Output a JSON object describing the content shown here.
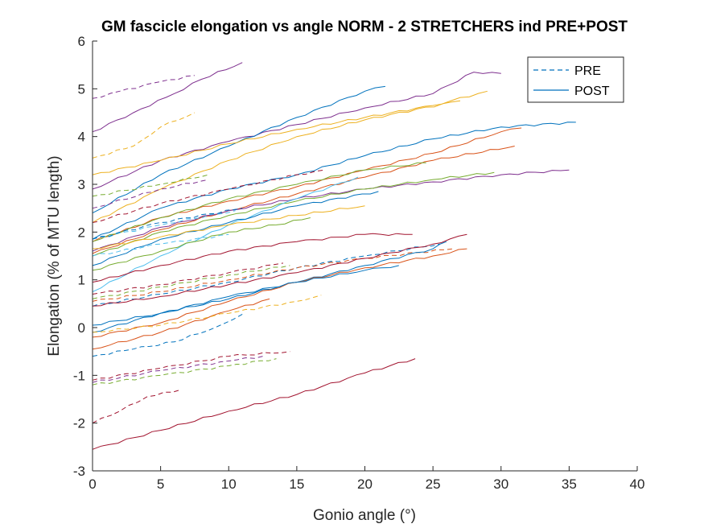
{
  "chart_data": {
    "type": "line",
    "title": "GM fascicle elongation vs angle NORM - 2 STRETCHERS ind PRE+POST",
    "xlabel": "Gonio angle (°)",
    "ylabel": "Elongation (% of MTU length)",
    "xlim": [
      0,
      40
    ],
    "ylim": [
      -3,
      6
    ],
    "xticks": [
      "0",
      "5",
      "10",
      "15",
      "20",
      "25",
      "30",
      "35",
      "40"
    ],
    "yticks": [
      "-3",
      "-2",
      "-1",
      "0",
      "1",
      "2",
      "3",
      "4",
      "5",
      "6"
    ],
    "grid": false,
    "legend": {
      "position": "top-right",
      "entries": [
        {
          "label": "PRE",
          "dash": "dashed",
          "color": "#0072bd"
        },
        {
          "label": "POST",
          "dash": "solid",
          "color": "#0072bd"
        }
      ]
    },
    "series": [
      {
        "condition": "POST",
        "color": "#7e2f8e",
        "x": [
          0,
          3,
          6,
          8,
          11
        ],
        "y": [
          4.1,
          4.5,
          4.9,
          5.2,
          5.55
        ]
      },
      {
        "condition": "PRE",
        "color": "#7e2f8e",
        "x": [
          0,
          2,
          5,
          7.5
        ],
        "y": [
          4.8,
          4.95,
          5.15,
          5.28
        ]
      },
      {
        "condition": "POST",
        "color": "#7e2f8e",
        "x": [
          0,
          5,
          10,
          15,
          20,
          25,
          28,
          30
        ],
        "y": [
          2.9,
          3.5,
          3.9,
          4.25,
          4.6,
          4.9,
          5.35,
          5.32
        ]
      },
      {
        "condition": "POST",
        "color": "#0072bd",
        "x": [
          0,
          5,
          10,
          15,
          20,
          21.5
        ],
        "y": [
          2.4,
          3.2,
          3.8,
          4.4,
          4.95,
          5.05
        ]
      },
      {
        "condition": "PRE",
        "color": "#edb120",
        "x": [
          0,
          3,
          5,
          7.5
        ],
        "y": [
          3.55,
          3.8,
          4.2,
          4.5
        ]
      },
      {
        "condition": "POST",
        "color": "#edb120",
        "x": [
          0,
          5,
          10,
          15,
          20,
          25,
          29
        ],
        "y": [
          3.2,
          3.5,
          3.85,
          4.15,
          4.4,
          4.65,
          4.95
        ]
      },
      {
        "condition": "POST",
        "color": "#edb120",
        "x": [
          0,
          5,
          10,
          15,
          20,
          27
        ],
        "y": [
          2.2,
          2.9,
          3.5,
          4.0,
          4.35,
          4.75
        ]
      },
      {
        "condition": "POST",
        "color": "#0072bd",
        "x": [
          0,
          5,
          10,
          15,
          20,
          25,
          30,
          35.5
        ],
        "y": [
          1.85,
          2.5,
          2.9,
          3.2,
          3.6,
          3.95,
          4.2,
          4.3
        ]
      },
      {
        "condition": "POST",
        "color": "#d95319",
        "x": [
          0,
          5,
          10,
          15,
          20,
          25,
          30,
          31.5
        ],
        "y": [
          1.8,
          2.3,
          2.65,
          2.95,
          3.3,
          3.65,
          4.1,
          4.18
        ]
      },
      {
        "condition": "POST",
        "color": "#d95319",
        "x": [
          0,
          5,
          10,
          15,
          20,
          25,
          31
        ],
        "y": [
          1.55,
          2.05,
          2.45,
          2.8,
          3.15,
          3.5,
          3.8
        ]
      },
      {
        "condition": "POST",
        "color": "#7e2f8e",
        "x": [
          0,
          5,
          10,
          15,
          20,
          25,
          30,
          35
        ],
        "y": [
          1.6,
          2.1,
          2.45,
          2.7,
          2.9,
          3.05,
          3.2,
          3.3
        ]
      },
      {
        "condition": "POST",
        "color": "#77ac30",
        "x": [
          0,
          5,
          10,
          15,
          20,
          25,
          29.5
        ],
        "y": [
          1.5,
          2.0,
          2.35,
          2.65,
          2.9,
          3.1,
          3.25
        ]
      },
      {
        "condition": "POST",
        "color": "#77ac30",
        "x": [
          0,
          5,
          10,
          15,
          20,
          24.5
        ],
        "y": [
          1.8,
          2.3,
          2.7,
          3.0,
          3.3,
          3.45
        ]
      },
      {
        "condition": "POST",
        "color": "#4dbeee",
        "x": [
          0,
          5,
          10,
          15,
          19.5
        ],
        "y": [
          0.75,
          1.5,
          2.15,
          2.7,
          3.15
        ]
      },
      {
        "condition": "POST",
        "color": "#0072bd",
        "x": [
          0,
          5,
          10,
          15,
          21
        ],
        "y": [
          1.3,
          1.85,
          2.2,
          2.55,
          2.85
        ]
      },
      {
        "condition": "POST",
        "color": "#77ac30",
        "x": [
          0,
          5,
          10,
          13.5,
          16
        ],
        "y": [
          1.2,
          1.6,
          2.0,
          2.15,
          2.3
        ]
      },
      {
        "condition": "POST",
        "color": "#edb120",
        "x": [
          0,
          5,
          10,
          15,
          20
        ],
        "y": [
          1.65,
          1.9,
          2.15,
          2.35,
          2.55
        ]
      },
      {
        "condition": "PRE",
        "color": "#a2142f",
        "x": [
          0,
          5,
          10,
          15,
          17
        ],
        "y": [
          2.2,
          2.6,
          2.9,
          3.2,
          3.3
        ]
      },
      {
        "condition": "PRE",
        "color": "#7e2f8e",
        "x": [
          0,
          5,
          8.5
        ],
        "y": [
          2.5,
          2.9,
          3.1
        ]
      },
      {
        "condition": "PRE",
        "color": "#77ac30",
        "x": [
          0,
          5,
          8.5
        ],
        "y": [
          2.75,
          3.0,
          3.2
        ]
      },
      {
        "condition": "PRE",
        "color": "#4dbeee",
        "x": [
          0,
          5,
          10.5
        ],
        "y": [
          1.85,
          2.15,
          2.45
        ]
      },
      {
        "condition": "PRE",
        "color": "#0072bd",
        "x": [
          0,
          5,
          11
        ],
        "y": [
          1.85,
          2.2,
          2.5
        ]
      },
      {
        "condition": "PRE",
        "color": "#4dbeee",
        "x": [
          0,
          5,
          10
        ],
        "y": [
          1.5,
          1.75,
          1.95
        ]
      },
      {
        "condition": "PRE",
        "color": "#0072bd",
        "x": [
          0,
          5,
          10,
          15,
          20,
          25.5
        ],
        "y": [
          0.45,
          0.7,
          0.95,
          1.25,
          1.5,
          1.75
        ]
      },
      {
        "condition": "PRE",
        "color": "#d95319",
        "x": [
          0,
          5,
          10,
          15,
          20,
          26.5
        ],
        "y": [
          0.55,
          0.75,
          1.0,
          1.25,
          1.45,
          1.65
        ]
      },
      {
        "condition": "PRE",
        "color": "#77ac30",
        "x": [
          0,
          5,
          10,
          14.5
        ],
        "y": [
          0.6,
          0.85,
          1.1,
          1.3
        ]
      },
      {
        "condition": "PRE",
        "color": "#a2142f",
        "x": [
          0,
          5,
          10,
          14
        ],
        "y": [
          0.7,
          0.9,
          1.15,
          1.35
        ]
      },
      {
        "condition": "POST",
        "color": "#a2142f",
        "x": [
          0,
          5,
          10,
          15,
          20,
          23.5
        ],
        "y": [
          0.95,
          1.3,
          1.6,
          1.8,
          1.95,
          1.95
        ]
      },
      {
        "condition": "POST",
        "color": "#a2142f",
        "x": [
          0,
          5,
          10,
          15,
          20,
          25,
          27.5
        ],
        "y": [
          0.45,
          0.65,
          0.9,
          1.15,
          1.45,
          1.75,
          1.95
        ]
      },
      {
        "condition": "POST",
        "color": "#0072bd",
        "x": [
          0,
          5,
          10,
          15,
          20,
          25,
          26
        ],
        "y": [
          0.05,
          0.3,
          0.6,
          0.95,
          1.3,
          1.65,
          1.8
        ]
      },
      {
        "condition": "POST",
        "color": "#d95319",
        "x": [
          0,
          5,
          10,
          15,
          20,
          25,
          27.5
        ],
        "y": [
          -0.2,
          0.1,
          0.55,
          0.95,
          1.25,
          1.5,
          1.65
        ]
      },
      {
        "condition": "POST",
        "color": "#0072bd",
        "x": [
          0,
          5,
          10,
          15,
          20,
          22.5
        ],
        "y": [
          -0.1,
          0.3,
          0.65,
          0.95,
          1.2,
          1.3
        ]
      },
      {
        "condition": "POST",
        "color": "#d95319",
        "x": [
          0,
          5,
          10,
          13
        ],
        "y": [
          -0.45,
          -0.1,
          0.35,
          0.6
        ]
      },
      {
        "condition": "PRE",
        "color": "#edb120",
        "x": [
          0,
          5,
          10,
          15,
          16.8
        ],
        "y": [
          -0.1,
          0.05,
          0.3,
          0.55,
          0.68
        ]
      },
      {
        "condition": "PRE",
        "color": "#0072bd",
        "x": [
          0,
          3,
          6,
          9,
          11
        ],
        "y": [
          -0.6,
          -0.45,
          -0.3,
          0.0,
          0.28
        ]
      },
      {
        "condition": "PRE",
        "color": "#a2142f",
        "x": [
          0,
          5,
          10,
          14.5
        ],
        "y": [
          -1.1,
          -0.85,
          -0.6,
          -0.5
        ]
      },
      {
        "condition": "PRE",
        "color": "#77ac30",
        "x": [
          0,
          5,
          10,
          13.5
        ],
        "y": [
          -1.2,
          -1.0,
          -0.8,
          -0.65
        ]
      },
      {
        "condition": "PRE",
        "color": "#7e2f8e",
        "x": [
          0,
          5,
          10,
          12.5
        ],
        "y": [
          -1.15,
          -0.9,
          -0.7,
          -0.6
        ]
      },
      {
        "condition": "PRE",
        "color": "#a2142f",
        "x": [
          0,
          2,
          4,
          6.5
        ],
        "y": [
          -2.0,
          -1.75,
          -1.45,
          -1.3
        ]
      },
      {
        "condition": "POST",
        "color": "#a2142f",
        "x": [
          0,
          5,
          10,
          15,
          20,
          23.7
        ],
        "y": [
          -2.55,
          -2.15,
          -1.75,
          -1.4,
          -0.95,
          -0.65
        ]
      }
    ]
  }
}
